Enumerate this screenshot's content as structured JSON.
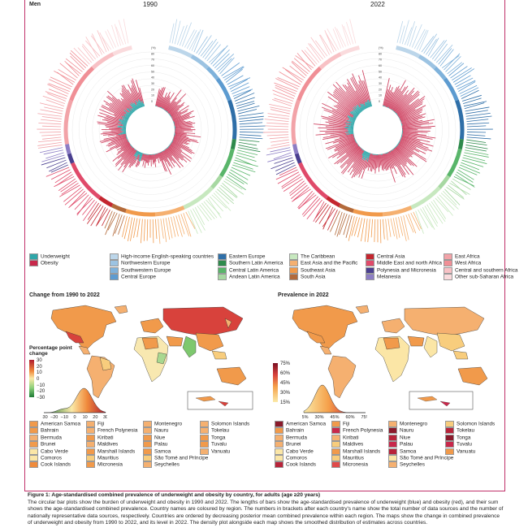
{
  "top": {
    "sex_label": "Men",
    "year_left": "1990",
    "year_right": "2022"
  },
  "radial_ticks": [
    "(%)",
    "80",
    "70",
    "60",
    "50",
    "40",
    "30",
    "20",
    "10",
    "0"
  ],
  "outcome_legend": [
    {
      "label": "Underweight",
      "color": "#2fa7a9"
    },
    {
      "label": "Obesity",
      "color": "#c8284b"
    }
  ],
  "region_legend": [
    {
      "label": "High-income English-speaking countries",
      "color": "#bcd6ea"
    },
    {
      "label": "Northwestern Europe",
      "color": "#9cc3e2"
    },
    {
      "label": "Southwestern Europe",
      "color": "#7fb2db"
    },
    {
      "label": "Central Europe",
      "color": "#5d9bd0"
    },
    {
      "label": "Eastern Europe",
      "color": "#2f6fa8"
    },
    {
      "label": "Southern Latin America",
      "color": "#2e8a4c"
    },
    {
      "label": "Central Latin America",
      "color": "#59b56a"
    },
    {
      "label": "Andean Latin America",
      "color": "#a7d8a2"
    },
    {
      "label": "The Caribbean",
      "color": "#c7e8bf"
    },
    {
      "label": "East Asia and the Pacific",
      "color": "#f5b070"
    },
    {
      "label": "Southeast Asia",
      "color": "#f19a4b"
    },
    {
      "label": "South Asia",
      "color": "#b36a3a"
    },
    {
      "label": "Central Asia",
      "color": "#c4262f"
    },
    {
      "label": "Middle East and north Africa",
      "color": "#e04a6a"
    },
    {
      "label": "Polynesia and Micronesia",
      "color": "#4a3f8f"
    },
    {
      "label": "Melanesia",
      "color": "#8c7dc4"
    },
    {
      "label": "East Africa",
      "color": "#f2a3a8"
    },
    {
      "label": "West Africa",
      "color": "#f08f96"
    },
    {
      "label": "Central and southern Africa",
      "color": "#f8c1c5"
    },
    {
      "label": "Other sub-Saharan Africa",
      "color": "#fadbdd"
    }
  ],
  "map_left": {
    "title": "Change from 1990 to 2022",
    "scale_title": "Percentage point change",
    "scale_ticks": [
      "30",
      "20",
      "10",
      "0",
      "−10",
      "−20",
      "−30"
    ],
    "density_ticks": [
      "−30",
      "−20",
      "−10",
      "0",
      "10",
      "20",
      "30"
    ]
  },
  "map_right": {
    "title": "Prevalence in 2022",
    "scale_ticks": [
      "75%",
      "60%",
      "45%",
      "30%",
      "15%"
    ],
    "density_ticks": [
      "15%",
      "30%",
      "45%",
      "60%",
      "75%"
    ]
  },
  "islands_left": [
    {
      "label": "American Samoa",
      "color": "#f19a4b"
    },
    {
      "label": "Bahrain",
      "color": "#f19a4b"
    },
    {
      "label": "Bermuda",
      "color": "#f5b070"
    },
    {
      "label": "Brunei",
      "color": "#f19a4b"
    },
    {
      "label": "Cabo Verde",
      "color": "#fbe6a6"
    },
    {
      "label": "Comoros",
      "color": "#fbe6a6"
    },
    {
      "label": "Cook Islands",
      "color": "#ef8b3c"
    },
    {
      "label": "Fiji",
      "color": "#f5b070"
    },
    {
      "label": "French Polynesia",
      "color": "#f5b070"
    },
    {
      "label": "Kiribati",
      "color": "#f19a4b"
    },
    {
      "label": "Maldives",
      "color": "#f5b070"
    },
    {
      "label": "Marshall Islands",
      "color": "#f19a4b"
    },
    {
      "label": "Mauritius",
      "color": "#f8cd7d"
    },
    {
      "label": "Micronesia",
      "color": "#f19a4b"
    },
    {
      "label": "Montenegro",
      "color": "#f5b070"
    },
    {
      "label": "Nauru",
      "color": "#f5b070"
    },
    {
      "label": "Niue",
      "color": "#f19a4b"
    },
    {
      "label": "Palau",
      "color": "#f19a4b"
    },
    {
      "label": "Samoa",
      "color": "#f19a4b"
    },
    {
      "label": "São Tomé and Príncipe",
      "color": "#f8cd7d"
    },
    {
      "label": "Seychelles",
      "color": "#f5b070"
    },
    {
      "label": "Solomon Islands",
      "color": "#f5b070"
    },
    {
      "label": "Tokelau",
      "color": "#f5b070"
    },
    {
      "label": "Tonga",
      "color": "#f19a4b"
    },
    {
      "label": "Tuvalu",
      "color": "#f19a4b"
    },
    {
      "label": "Vanuatu",
      "color": "#f5b070"
    }
  ],
  "islands_right": [
    {
      "label": "American Samoa",
      "color": "#8b1a2b"
    },
    {
      "label": "Bahrain",
      "color": "#f19a4b"
    },
    {
      "label": "Bermuda",
      "color": "#f5b070"
    },
    {
      "label": "Brunei",
      "color": "#f5b070"
    },
    {
      "label": "Cabo Verde",
      "color": "#fbe6a6"
    },
    {
      "label": "Comoros",
      "color": "#fbe6a6"
    },
    {
      "label": "Cook Islands",
      "color": "#b8243a"
    },
    {
      "label": "Fiji",
      "color": "#f19a4b"
    },
    {
      "label": "French Polynesia",
      "color": "#c8284b"
    },
    {
      "label": "Kiribati",
      "color": "#f5b070"
    },
    {
      "label": "Maldives",
      "color": "#f8cd7d"
    },
    {
      "label": "Marshall Islands",
      "color": "#f19a4b"
    },
    {
      "label": "Mauritius",
      "color": "#f8cd7d"
    },
    {
      "label": "Micronesia",
      "color": "#e04a4a"
    },
    {
      "label": "Montenegro",
      "color": "#f5b070"
    },
    {
      "label": "Nauru",
      "color": "#8b1a2b"
    },
    {
      "label": "Niue",
      "color": "#b8243a"
    },
    {
      "label": "Palau",
      "color": "#c8284b"
    },
    {
      "label": "Samoa",
      "color": "#b8243a"
    },
    {
      "label": "São Tomé and Príncipe",
      "color": "#fbe6a6"
    },
    {
      "label": "Seychelles",
      "color": "#f5b070"
    },
    {
      "label": "Solomon Islands",
      "color": "#f8cd7d"
    },
    {
      "label": "Tokelau",
      "color": "#b8243a"
    },
    {
      "label": "Tonga",
      "color": "#8b1a2b"
    },
    {
      "label": "Tuvalu",
      "color": "#c8284b"
    },
    {
      "label": "Vanuatu",
      "color": "#f19a4b"
    }
  ],
  "caption": {
    "title": "Figure 1: Age-standardised combined prevalence of underweight and obesity by country, for adults (age ≥20 years)",
    "line1": "The circular bar plots show the burden of underweight and obesity in 1990 and 2022. The lengths of bars show the age-standardised prevalence of underweight (blue) and obesity (red), and their sum",
    "line2": "shows the age-standardised combined prevalence. Country names are coloured by region. The numbers in brackets after each country's name show the total number of data sources and the number of",
    "line3": "nationally representative data sources, respectively. Countries are ordered by decreasing posterior mean combined prevalence within each region. The maps show the change in combined prevalence",
    "line4": "of underweight and obesity from 1990 to 2022, and its level in 2022. The density plot alongside each map shows the smoothed distribution of estimates across countries."
  }
}
